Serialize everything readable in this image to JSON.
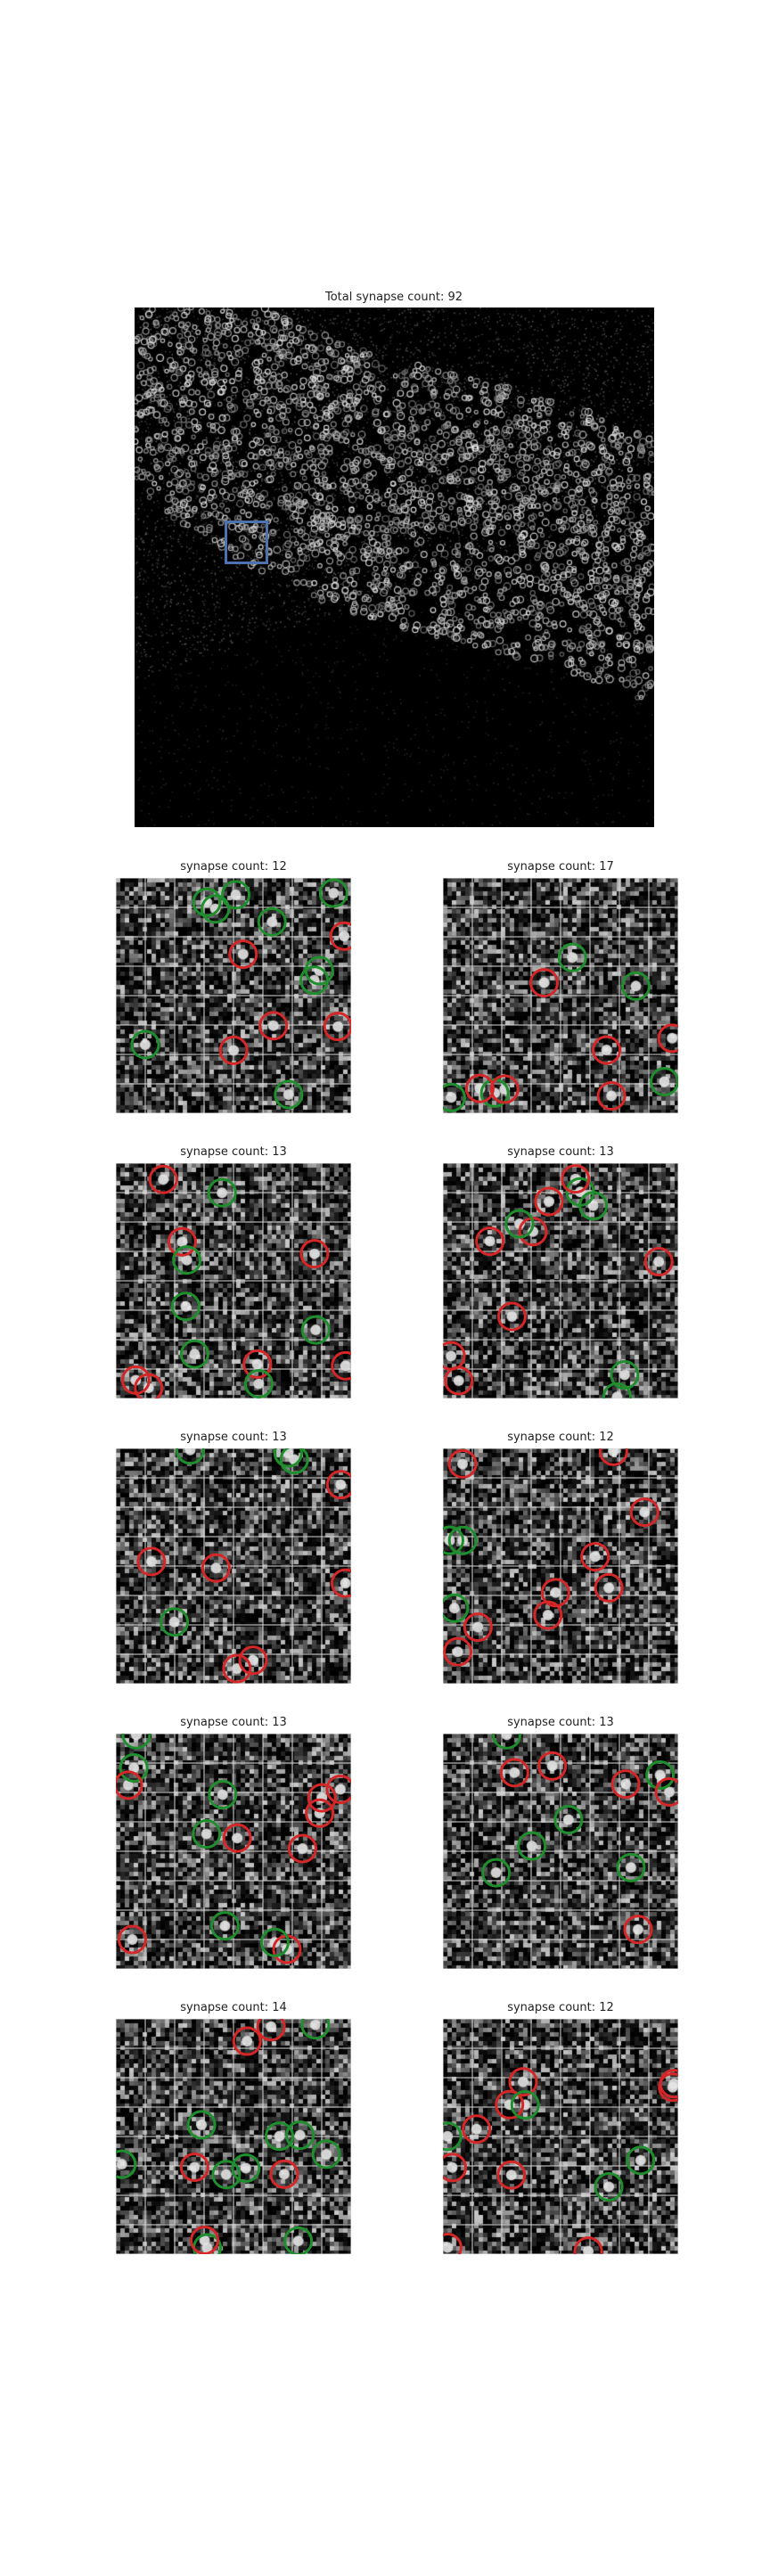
{
  "main": {
    "title": "Total synapse count: 92"
  },
  "colors": {
    "roi_box": "#4c72b0",
    "synapse_red": "#d62728",
    "synapse_green": "#1f8f2e",
    "grid": "#d8d8d8"
  },
  "panels": [
    {
      "title": "synapse count: 12"
    },
    {
      "title": "synapse count: 17"
    },
    {
      "title": "synapse count: 13"
    },
    {
      "title": "synapse count: 13"
    },
    {
      "title": "synapse count: 13"
    },
    {
      "title": "synapse count: 12"
    },
    {
      "title": "synapse count: 13"
    },
    {
      "title": "synapse count: 13"
    },
    {
      "title": "synapse count: 14"
    },
    {
      "title": "synapse count: 12"
    }
  ]
}
